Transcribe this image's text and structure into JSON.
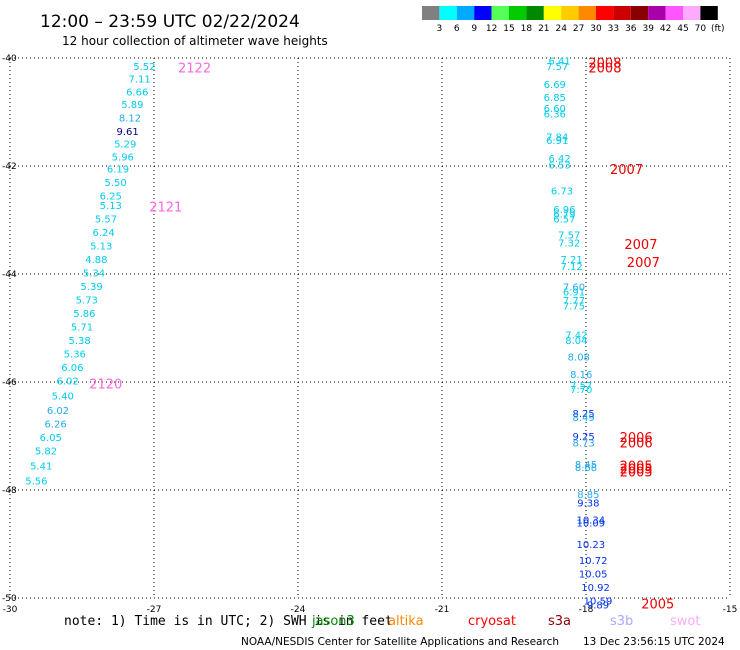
{
  "header": {
    "title": "12:00 – 23:59 UTC 02/22/2024",
    "subtitle": "12 hour collection of altimeter wave heights"
  },
  "legend": {
    "unit": "(ft)",
    "bins": [
      {
        "label": "3",
        "color": "#808080"
      },
      {
        "label": "6",
        "color": "#00ffff"
      },
      {
        "label": "9",
        "color": "#00aaff"
      },
      {
        "label": "12",
        "color": "#0000ff"
      },
      {
        "label": "15",
        "color": "#55ff55"
      },
      {
        "label": "18",
        "color": "#00cc00"
      },
      {
        "label": "21",
        "color": "#008800"
      },
      {
        "label": "24",
        "color": "#ffff00"
      },
      {
        "label": "27",
        "color": "#ffcc00"
      },
      {
        "label": "30",
        "color": "#ff8800"
      },
      {
        "label": "33",
        "color": "#ff0000"
      },
      {
        "label": "36",
        "color": "#cc0000"
      },
      {
        "label": "39",
        "color": "#880000"
      },
      {
        "label": "42",
        "color": "#aa00aa"
      },
      {
        "label": "45",
        "color": "#ff55ff"
      },
      {
        "label": "70",
        "color": "#ffaaff"
      },
      {
        "label": "",
        "color": "#000000"
      }
    ]
  },
  "footer": {
    "note": "note: 1) Time is in UTC; 2) SWH is in feet",
    "credit": "NOAA/NESDIS Center for Satellite Applications and Research",
    "timestamp": "13 Dec 23:56:15 UTC 2024"
  },
  "satellites": [
    {
      "name": "jason3",
      "color": "#008800"
    },
    {
      "name": "altika",
      "color": "#ff8800"
    },
    {
      "name": "cryosat",
      "color": "#ff0000"
    },
    {
      "name": "s3a",
      "color": "#880000"
    },
    {
      "name": "s3b",
      "color": "#aaaaff"
    },
    {
      "name": "swot",
      "color": "#ffaaff"
    }
  ],
  "colors": {
    "cyan": "#00ccee",
    "lightblue": "#22aaee",
    "blue": "#0033ee",
    "navy": "#000077",
    "pink": "#ff66dd",
    "red": "#ee0000"
  },
  "chart_data": {
    "type": "scatter",
    "xlim": [
      -30,
      -15
    ],
    "ylim": [
      -50,
      -40
    ],
    "x_ticks": [
      -30,
      -27,
      -24,
      -21,
      -18,
      -15
    ],
    "x_tick_labels": [
      "-30",
      "-27",
      "-24",
      "-21",
      "-18",
      "-15"
    ],
    "y_ticks": [
      -40,
      -42,
      -44,
      -46,
      -48,
      -50
    ],
    "y_tick_labels": [
      "-40",
      "-42",
      "-44",
      "-46",
      "-48",
      "-50"
    ],
    "grid": true,
    "series": [
      {
        "points": [
          {
            "x": -27.2,
            "y": -40.15,
            "v": "5.52",
            "c": "cyan"
          },
          {
            "x": -27.3,
            "y": -40.38,
            "v": "7.11",
            "c": "cyan"
          },
          {
            "x": -27.35,
            "y": -40.62,
            "v": "6.66",
            "c": "cyan"
          },
          {
            "x": -27.45,
            "y": -40.85,
            "v": "5.89",
            "c": "cyan"
          },
          {
            "x": -27.5,
            "y": -41.1,
            "v": "8.12",
            "c": "lightblue"
          },
          {
            "x": -27.55,
            "y": -41.35,
            "v": "9.61",
            "c": "navy"
          },
          {
            "x": -27.6,
            "y": -41.58,
            "v": "5.29",
            "c": "cyan"
          },
          {
            "x": -27.65,
            "y": -41.82,
            "v": "5.96",
            "c": "cyan"
          },
          {
            "x": -27.75,
            "y": -42.05,
            "v": "6.19",
            "c": "cyan"
          },
          {
            "x": -27.8,
            "y": -42.3,
            "v": "5.50",
            "c": "cyan"
          },
          {
            "x": -27.9,
            "y": -42.55,
            "v": "6.25",
            "c": "cyan"
          },
          {
            "x": -27.9,
            "y": -42.72,
            "v": "5.13",
            "c": "cyan"
          },
          {
            "x": -28.0,
            "y": -42.97,
            "v": "5.57",
            "c": "cyan"
          },
          {
            "x": -28.05,
            "y": -43.22,
            "v": "6.24",
            "c": "cyan"
          },
          {
            "x": -28.1,
            "y": -43.47,
            "v": "5.13",
            "c": "cyan"
          },
          {
            "x": -28.2,
            "y": -43.72,
            "v": "4.88",
            "c": "cyan"
          },
          {
            "x": -28.25,
            "y": -43.97,
            "v": "5.34",
            "c": "cyan"
          },
          {
            "x": -28.3,
            "y": -44.22,
            "v": "5.39",
            "c": "cyan"
          },
          {
            "x": -28.4,
            "y": -44.47,
            "v": "5.73",
            "c": "cyan"
          },
          {
            "x": -28.45,
            "y": -44.72,
            "v": "5.86",
            "c": "cyan"
          },
          {
            "x": -28.5,
            "y": -44.97,
            "v": "5.71",
            "c": "cyan"
          },
          {
            "x": -28.55,
            "y": -45.22,
            "v": "5.38",
            "c": "cyan"
          },
          {
            "x": -28.65,
            "y": -45.47,
            "v": "5.36",
            "c": "cyan"
          },
          {
            "x": -28.7,
            "y": -45.72,
            "v": "6.06",
            "c": "cyan"
          },
          {
            "x": -28.8,
            "y": -45.97,
            "v": "6.02",
            "c": "cyan"
          },
          {
            "x": -28.9,
            "y": -46.25,
            "v": "5.40",
            "c": "cyan"
          },
          {
            "x": -29.0,
            "y": -46.52,
            "v": "6.02",
            "c": "lightblue"
          },
          {
            "x": -29.05,
            "y": -46.77,
            "v": "6.26",
            "c": "lightblue"
          },
          {
            "x": -29.15,
            "y": -47.02,
            "v": "6.05",
            "c": "cyan"
          },
          {
            "x": -29.25,
            "y": -47.27,
            "v": "5.82",
            "c": "cyan"
          },
          {
            "x": -29.35,
            "y": -47.55,
            "v": "5.41",
            "c": "cyan"
          },
          {
            "x": -29.45,
            "y": -47.82,
            "v": "5.56",
            "c": "cyan"
          }
        ]
      },
      {
        "points": [
          {
            "x": -18.55,
            "y": -40.05,
            "v": "6.41",
            "c": "cyan"
          },
          {
            "x": -18.6,
            "y": -40.15,
            "v": "7.57",
            "c": "cyan"
          },
          {
            "x": -18.65,
            "y": -40.48,
            "v": "6.69",
            "c": "cyan"
          },
          {
            "x": -18.65,
            "y": -40.72,
            "v": "6.85",
            "c": "cyan"
          },
          {
            "x": -18.65,
            "y": -40.93,
            "v": "6.60",
            "c": "cyan"
          },
          {
            "x": -18.65,
            "y": -41.03,
            "v": "6.36",
            "c": "cyan"
          },
          {
            "x": -18.6,
            "y": -41.45,
            "v": "7.84",
            "c": "cyan"
          },
          {
            "x": -18.6,
            "y": -41.52,
            "v": "6.91",
            "c": "cyan"
          },
          {
            "x": -18.55,
            "y": -41.85,
            "v": "6.42",
            "c": "cyan"
          },
          {
            "x": -18.55,
            "y": -41.97,
            "v": "6.53",
            "c": "cyan"
          },
          {
            "x": -18.5,
            "y": -42.45,
            "v": "6.73",
            "c": "cyan"
          },
          {
            "x": -18.45,
            "y": -42.8,
            "v": "6.96",
            "c": "cyan"
          },
          {
            "x": -18.45,
            "y": -42.88,
            "v": "6.79",
            "c": "cyan"
          },
          {
            "x": -18.45,
            "y": -42.97,
            "v": "6.57",
            "c": "cyan"
          },
          {
            "x": -18.35,
            "y": -43.27,
            "v": "7.57",
            "c": "cyan"
          },
          {
            "x": -18.35,
            "y": -43.42,
            "v": "7.32",
            "c": "cyan"
          },
          {
            "x": -18.3,
            "y": -43.72,
            "v": "7.21",
            "c": "cyan"
          },
          {
            "x": -18.3,
            "y": -43.85,
            "v": "7.12",
            "c": "cyan"
          },
          {
            "x": -18.25,
            "y": -44.23,
            "v": "7.60",
            "c": "lightblue"
          },
          {
            "x": -18.25,
            "y": -44.32,
            "v": "6.91",
            "c": "cyan"
          },
          {
            "x": -18.25,
            "y": -44.48,
            "v": "7.77",
            "c": "cyan"
          },
          {
            "x": -18.25,
            "y": -44.58,
            "v": "7.75",
            "c": "cyan"
          },
          {
            "x": -18.2,
            "y": -45.12,
            "v": "7.42",
            "c": "cyan"
          },
          {
            "x": -18.2,
            "y": -45.22,
            "v": "8.04",
            "c": "cyan"
          },
          {
            "x": -18.15,
            "y": -45.53,
            "v": "8.08",
            "c": "lightblue"
          },
          {
            "x": -18.1,
            "y": -45.85,
            "v": "8.16",
            "c": "lightblue"
          },
          {
            "x": -18.1,
            "y": -46.06,
            "v": "7.57",
            "c": "cyan"
          },
          {
            "x": -18.1,
            "y": -46.13,
            "v": "7.70",
            "c": "cyan"
          },
          {
            "x": -18.05,
            "y": -46.57,
            "v": "8.25",
            "c": "blue"
          },
          {
            "x": -18.05,
            "y": -46.65,
            "v": "8.49",
            "c": "lightblue"
          },
          {
            "x": -18.05,
            "y": -47.0,
            "v": "9.25",
            "c": "blue"
          },
          {
            "x": -18.05,
            "y": -47.12,
            "v": "8.73",
            "c": "lightblue"
          },
          {
            "x": -18.0,
            "y": -47.52,
            "v": "8.45",
            "c": "lightblue"
          },
          {
            "x": -18.0,
            "y": -47.57,
            "v": "8.68",
            "c": "lightblue"
          },
          {
            "x": -17.95,
            "y": -48.07,
            "v": "8.85",
            "c": "lightblue"
          },
          {
            "x": -17.95,
            "y": -48.23,
            "v": "9.38",
            "c": "blue"
          },
          {
            "x": -17.9,
            "y": -48.55,
            "v": "10.34",
            "c": "blue"
          },
          {
            "x": -17.9,
            "y": -48.6,
            "v": "10.09",
            "c": "blue"
          },
          {
            "x": -17.9,
            "y": -49.0,
            "v": "10.23",
            "c": "blue"
          },
          {
            "x": -17.85,
            "y": -49.3,
            "v": "10.72",
            "c": "blue"
          },
          {
            "x": -17.85,
            "y": -49.55,
            "v": "10.05",
            "c": "blue"
          },
          {
            "x": -17.8,
            "y": -49.8,
            "v": "10.92",
            "c": "blue"
          },
          {
            "x": -17.75,
            "y": -50.05,
            "v": "10.59",
            "c": "blue"
          },
          {
            "x": -17.75,
            "y": -50.12,
            "v": "9.89",
            "c": "blue"
          }
        ]
      }
    ],
    "pass_labels": [
      {
        "x": -26.5,
        "y": -40.18,
        "text": "2122",
        "c": "pink"
      },
      {
        "x": -27.1,
        "y": -42.75,
        "text": "2121",
        "c": "pink"
      },
      {
        "x": -28.35,
        "y": -46.03,
        "text": "2120",
        "c": "pink"
      },
      {
        "x": -17.95,
        "y": -40.08,
        "text": "2008",
        "c": "red"
      },
      {
        "x": -17.95,
        "y": -40.18,
        "text": "2008",
        "c": "red"
      },
      {
        "x": -17.5,
        "y": -42.06,
        "text": "2007",
        "c": "red"
      },
      {
        "x": -17.2,
        "y": -43.44,
        "text": "2007",
        "c": "red"
      },
      {
        "x": -17.15,
        "y": -43.78,
        "text": "2007",
        "c": "red"
      },
      {
        "x": -17.3,
        "y": -47.02,
        "text": "2006",
        "c": "red"
      },
      {
        "x": -17.3,
        "y": -47.12,
        "text": "2006",
        "c": "red"
      },
      {
        "x": -17.3,
        "y": -47.55,
        "text": "2005",
        "c": "red"
      },
      {
        "x": -17.3,
        "y": -47.6,
        "text": "2005",
        "c": "red"
      },
      {
        "x": -17.3,
        "y": -47.66,
        "text": "2005",
        "c": "red"
      },
      {
        "x": -16.85,
        "y": -50.1,
        "text": "2005",
        "c": "red"
      }
    ]
  }
}
